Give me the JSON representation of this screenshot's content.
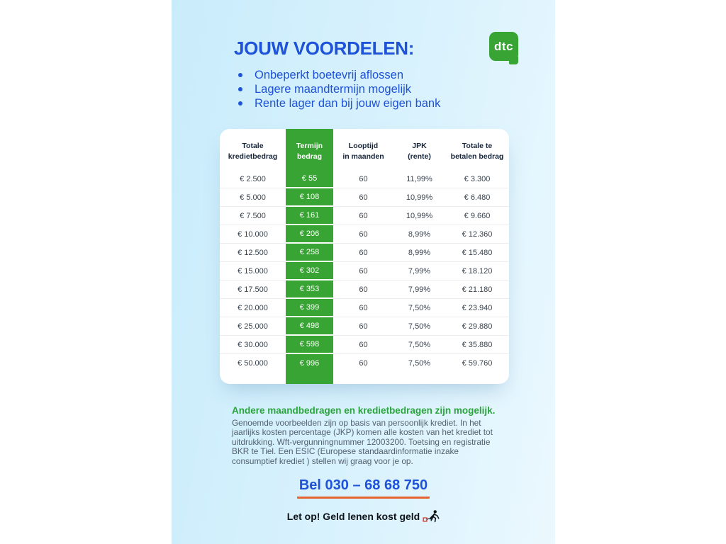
{
  "header": {
    "title": "JOUW VOORDELEN:",
    "bullets": [
      "Onbeperkt boetevrij aflossen",
      "Lagere maandtermijn mogelijk",
      "Rente lager dan bij jouw eigen bank"
    ],
    "logo_text": "dtc"
  },
  "table": {
    "headers": [
      [
        "Totale",
        "kredietbedrag"
      ],
      [
        "Termijn",
        "bedrag"
      ],
      [
        "Looptijd",
        "in maanden"
      ],
      [
        "JPK",
        "(rente)"
      ],
      [
        "Totale te",
        "betalen bedrag"
      ]
    ],
    "highlight_column_index": 1,
    "rows": [
      [
        "€ 2.500",
        "€ 55",
        "60",
        "11,99%",
        "€ 3.300"
      ],
      [
        "€ 5.000",
        "€ 108",
        "60",
        "10,99%",
        "€ 6.480"
      ],
      [
        "€ 7.500",
        "€ 161",
        "60",
        "10,99%",
        "€ 9.660"
      ],
      [
        "€ 10.000",
        "€ 206",
        "60",
        "8,99%",
        "€ 12.360"
      ],
      [
        "€ 12.500",
        "€ 258",
        "60",
        "8,99%",
        "€ 15.480"
      ],
      [
        "€ 15.000",
        "€ 302",
        "60",
        "7,99%",
        "€ 18.120"
      ],
      [
        "€ 17.500",
        "€ 353",
        "60",
        "7,99%",
        "€ 21.180"
      ],
      [
        "€ 20.000",
        "€ 399",
        "60",
        "7,50%",
        "€ 23.940"
      ],
      [
        "€ 25.000",
        "€ 498",
        "60",
        "7,50%",
        "€ 29.880"
      ],
      [
        "€ 30.000",
        "€ 598",
        "60",
        "7,50%",
        "€ 35.880"
      ],
      [
        "€ 50.000",
        "€ 996",
        "60",
        "7,50%",
        "€ 59.760"
      ]
    ]
  },
  "footer": {
    "highlight": "Andere maandbedragen en kredietbedragen zijn mogelijk.",
    "disclaimer": "Genoemde voorbeelden zijn op basis van persoonlijk krediet. In het jaarlijks kosten percentage (JKP) komen alle kosten van het krediet tot uitdrukking. Wft-vergunningnummer 12003200. Toetsing en registratie BKR te Tiel. Een ESIC (Europese standaardinformatie inzake consumptief krediet ) stellen wij graag voor je op.",
    "phone": "Bel 030 – 68 68 750",
    "warning": "Let op! Geld lenen kost geld"
  },
  "colors": {
    "accent_blue": "#1e52d8",
    "brand_green": "#38a434",
    "note_green": "#2ba43d",
    "underline_orange": "#e4632e",
    "panel_blue_left": "#c9ecfb",
    "panel_blue_right": "#ebf8fe"
  }
}
